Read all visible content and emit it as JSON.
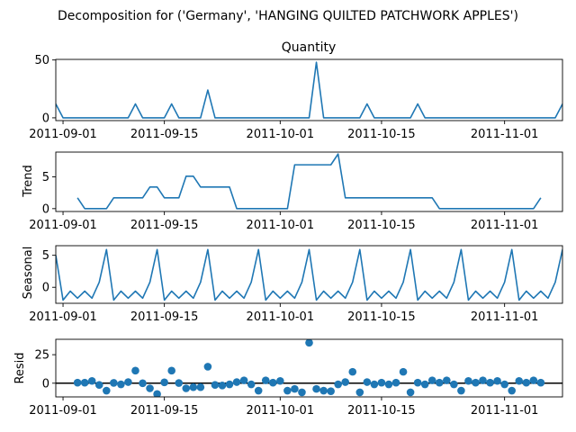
{
  "figure": {
    "suptitle": "Decomposition for ('Germany', 'HANGING QUILTED PATCHWORK APPLES')"
  },
  "colors": {
    "series": "#1f77b4",
    "zero_line": "#000000",
    "axes": "#000000"
  },
  "chart_data": [
    {
      "type": "line",
      "title": "Quantity",
      "ylabel": "",
      "xlim": [
        "2011-08-31",
        "2011-11-09"
      ],
      "ylim": [
        -2.4,
        50.5
      ],
      "yticks": [
        0,
        50
      ],
      "xticks": [
        "2011-09-01",
        "2011-09-15",
        "2011-10-01",
        "2011-10-15",
        "2011-11-01"
      ],
      "series": [
        {
          "x": [
            "2011-08-31",
            "2011-09-01",
            "2011-09-02",
            "2011-09-03",
            "2011-09-04",
            "2011-09-05",
            "2011-09-06",
            "2011-09-07",
            "2011-09-08",
            "2011-09-09",
            "2011-09-10",
            "2011-09-11",
            "2011-09-12",
            "2011-09-13",
            "2011-09-14",
            "2011-09-15",
            "2011-09-16",
            "2011-09-17",
            "2011-09-18",
            "2011-09-19",
            "2011-09-20",
            "2011-09-21",
            "2011-09-22",
            "2011-09-23",
            "2011-09-24",
            "2011-09-25",
            "2011-09-26",
            "2011-09-27",
            "2011-09-28",
            "2011-09-29",
            "2011-09-30",
            "2011-10-01",
            "2011-10-02",
            "2011-10-03",
            "2011-10-04",
            "2011-10-05",
            "2011-10-06",
            "2011-10-07",
            "2011-10-08",
            "2011-10-09",
            "2011-10-10",
            "2011-10-11",
            "2011-10-12",
            "2011-10-13",
            "2011-10-14",
            "2011-10-15",
            "2011-10-16",
            "2011-10-17",
            "2011-10-18",
            "2011-10-19",
            "2011-10-20",
            "2011-10-21",
            "2011-10-22",
            "2011-10-23",
            "2011-10-24",
            "2011-10-25",
            "2011-10-26",
            "2011-10-27",
            "2011-10-28",
            "2011-10-29",
            "2011-10-30",
            "2011-10-31",
            "2011-11-01",
            "2011-11-02",
            "2011-11-03",
            "2011-11-04",
            "2011-11-05",
            "2011-11-06",
            "2011-11-07",
            "2011-11-08",
            "2011-11-09"
          ],
          "y": [
            12,
            0,
            0,
            0,
            0,
            0,
            0,
            0,
            0,
            0,
            0,
            12,
            0,
            0,
            0,
            0,
            12,
            0,
            0,
            0,
            0,
            24,
            0,
            0,
            0,
            0,
            0,
            0,
            0,
            0,
            0,
            0,
            0,
            0,
            0,
            0,
            48,
            0,
            0,
            0,
            0,
            0,
            0,
            12,
            0,
            0,
            0,
            0,
            0,
            0,
            12,
            0,
            0,
            0,
            0,
            0,
            0,
            0,
            0,
            0,
            0,
            0,
            0,
            0,
            0,
            0,
            0,
            0,
            0,
            0,
            12
          ]
        }
      ]
    },
    {
      "type": "line",
      "title": "",
      "ylabel": "Trend",
      "xlim": [
        "2011-08-31",
        "2011-11-09"
      ],
      "ylim": [
        -0.45,
        8.9
      ],
      "yticks": [
        0,
        5
      ],
      "xticks": [
        "2011-09-01",
        "2011-09-15",
        "2011-10-01",
        "2011-10-15",
        "2011-11-01"
      ],
      "series": [
        {
          "x": [
            "2011-09-03",
            "2011-09-04",
            "2011-09-05",
            "2011-09-06",
            "2011-09-07",
            "2011-09-08",
            "2011-09-09",
            "2011-09-10",
            "2011-09-11",
            "2011-09-12",
            "2011-09-13",
            "2011-09-14",
            "2011-09-15",
            "2011-09-16",
            "2011-09-17",
            "2011-09-18",
            "2011-09-19",
            "2011-09-20",
            "2011-09-21",
            "2011-09-22",
            "2011-09-23",
            "2011-09-24",
            "2011-09-25",
            "2011-09-26",
            "2011-09-27",
            "2011-09-28",
            "2011-09-29",
            "2011-09-30",
            "2011-10-01",
            "2011-10-02",
            "2011-10-03",
            "2011-10-04",
            "2011-10-05",
            "2011-10-06",
            "2011-10-07",
            "2011-10-08",
            "2011-10-09",
            "2011-10-10",
            "2011-10-11",
            "2011-10-12",
            "2011-10-13",
            "2011-10-14",
            "2011-10-15",
            "2011-10-16",
            "2011-10-17",
            "2011-10-18",
            "2011-10-19",
            "2011-10-20",
            "2011-10-21",
            "2011-10-22",
            "2011-10-23",
            "2011-10-24",
            "2011-10-25",
            "2011-10-26",
            "2011-10-27",
            "2011-10-28",
            "2011-10-29",
            "2011-10-30",
            "2011-10-31",
            "2011-11-01",
            "2011-11-02",
            "2011-11-03",
            "2011-11-04",
            "2011-11-05",
            "2011-11-06"
          ],
          "y": [
            1.7,
            0,
            0,
            0,
            0,
            1.7,
            1.7,
            1.7,
            1.7,
            1.7,
            3.4,
            3.4,
            1.7,
            1.7,
            1.7,
            5.1,
            5.1,
            3.4,
            3.4,
            3.4,
            3.4,
            3.4,
            0,
            0,
            0,
            0,
            0,
            0,
            0,
            0,
            6.9,
            6.9,
            6.9,
            6.9,
            6.9,
            6.9,
            8.6,
            1.7,
            1.7,
            1.7,
            1.7,
            1.7,
            1.7,
            1.7,
            1.7,
            1.7,
            1.7,
            1.7,
            1.7,
            1.7,
            0,
            0,
            0,
            0,
            0,
            0,
            0,
            0,
            0,
            0,
            0,
            0,
            0,
            0,
            1.7
          ]
        }
      ]
    },
    {
      "type": "line",
      "title": "",
      "ylabel": "Seasonal",
      "xlim": [
        "2011-08-31",
        "2011-11-09"
      ],
      "ylim": [
        -2.5,
        6.5
      ],
      "yticks": [
        0,
        5
      ],
      "xticks": [
        "2011-09-01",
        "2011-09-15",
        "2011-10-01",
        "2011-10-15",
        "2011-11-01"
      ],
      "series": [
        {
          "x": [
            "2011-08-31",
            "2011-09-01",
            "2011-09-02",
            "2011-09-03",
            "2011-09-04",
            "2011-09-05",
            "2011-09-06",
            "2011-09-07",
            "2011-09-08",
            "2011-09-09",
            "2011-09-10",
            "2011-09-11",
            "2011-09-12",
            "2011-09-13",
            "2011-09-14",
            "2011-09-15",
            "2011-09-16",
            "2011-09-17",
            "2011-09-18",
            "2011-09-19",
            "2011-09-20",
            "2011-09-21",
            "2011-09-22",
            "2011-09-23",
            "2011-09-24",
            "2011-09-25",
            "2011-09-26",
            "2011-09-27",
            "2011-09-28",
            "2011-09-29",
            "2011-09-30",
            "2011-10-01",
            "2011-10-02",
            "2011-10-03",
            "2011-10-04",
            "2011-10-05",
            "2011-10-06",
            "2011-10-07",
            "2011-10-08",
            "2011-10-09",
            "2011-10-10",
            "2011-10-11",
            "2011-10-12",
            "2011-10-13",
            "2011-10-14",
            "2011-10-15",
            "2011-10-16",
            "2011-10-17",
            "2011-10-18",
            "2011-10-19",
            "2011-10-20",
            "2011-10-21",
            "2011-10-22",
            "2011-10-23",
            "2011-10-24",
            "2011-10-25",
            "2011-10-26",
            "2011-10-27",
            "2011-10-28",
            "2011-10-29",
            "2011-10-30",
            "2011-10-31",
            "2011-11-01",
            "2011-11-02",
            "2011-11-03",
            "2011-11-04",
            "2011-11-05",
            "2011-11-06",
            "2011-11-07",
            "2011-11-08",
            "2011-11-09"
          ],
          "y": [
            5.0,
            -2.0,
            -0.6,
            -1.7,
            -0.6,
            -1.7,
            0.8,
            5.9,
            -2.0,
            -0.6,
            -1.7,
            -0.6,
            -1.7,
            0.8,
            5.9,
            -2.0,
            -0.6,
            -1.7,
            -0.6,
            -1.7,
            0.8,
            5.9,
            -2.0,
            -0.6,
            -1.7,
            -0.6,
            -1.7,
            0.8,
            5.9,
            -2.0,
            -0.6,
            -1.7,
            -0.6,
            -1.7,
            0.8,
            5.9,
            -2.0,
            -0.6,
            -1.7,
            -0.6,
            -1.7,
            0.8,
            5.9,
            -2.0,
            -0.6,
            -1.7,
            -0.6,
            -1.7,
            0.8,
            5.9,
            -2.0,
            -0.6,
            -1.7,
            -0.6,
            -1.7,
            0.8,
            5.9,
            -2.0,
            -0.6,
            -1.7,
            -0.6,
            -1.7,
            0.8,
            5.9,
            -2.0,
            -0.6,
            -1.7,
            -0.6,
            -1.7,
            0.8,
            5.9
          ]
        }
      ]
    },
    {
      "type": "scatter",
      "title": "",
      "ylabel": "Resid",
      "xlim": [
        "2011-08-31",
        "2011-11-09"
      ],
      "ylim": [
        -12,
        38.5
      ],
      "yticks": [
        0,
        25
      ],
      "xticks": [
        "2011-09-01",
        "2011-09-15",
        "2011-10-01",
        "2011-10-15",
        "2011-11-01"
      ],
      "zero_line": true,
      "series": [
        {
          "x": [
            "2011-09-03",
            "2011-09-04",
            "2011-09-05",
            "2011-09-06",
            "2011-09-07",
            "2011-09-08",
            "2011-09-09",
            "2011-09-10",
            "2011-09-11",
            "2011-09-12",
            "2011-09-13",
            "2011-09-14",
            "2011-09-15",
            "2011-09-16",
            "2011-09-17",
            "2011-09-18",
            "2011-09-19",
            "2011-09-20",
            "2011-09-21",
            "2011-09-22",
            "2011-09-23",
            "2011-09-24",
            "2011-09-25",
            "2011-09-26",
            "2011-09-27",
            "2011-09-28",
            "2011-09-29",
            "2011-09-30",
            "2011-10-01",
            "2011-10-02",
            "2011-10-03",
            "2011-10-04",
            "2011-10-05",
            "2011-10-06",
            "2011-10-07",
            "2011-10-08",
            "2011-10-09",
            "2011-10-10",
            "2011-10-11",
            "2011-10-12",
            "2011-10-13",
            "2011-10-14",
            "2011-10-15",
            "2011-10-16",
            "2011-10-17",
            "2011-10-18",
            "2011-10-19",
            "2011-10-20",
            "2011-10-21",
            "2011-10-22",
            "2011-10-23",
            "2011-10-24",
            "2011-10-25",
            "2011-10-26",
            "2011-10-27",
            "2011-10-28",
            "2011-10-29",
            "2011-10-30",
            "2011-10-31",
            "2011-11-01",
            "2011-11-02",
            "2011-11-03",
            "2011-11-04",
            "2011-11-05",
            "2011-11-06"
          ],
          "y": [
            0.5,
            0.5,
            2.0,
            -1.5,
            -6.5,
            0.3,
            -1.0,
            1.0,
            11.0,
            0.0,
            -4.5,
            -9.5,
            0.8,
            11.0,
            0.2,
            -4.5,
            -3.5,
            -3.5,
            14.5,
            -1.5,
            -2.0,
            -1.0,
            1.0,
            2.5,
            -1.0,
            -6.5,
            2.5,
            0.5,
            2.0,
            -6.5,
            -5.0,
            -8.0,
            35.5,
            -5.0,
            -6.5,
            -7.0,
            -1.0,
            1.0,
            10.0,
            -8.0,
            1.0,
            -1.0,
            0.5,
            -1.0,
            0.5,
            10.0,
            -8.0,
            0.5,
            -1.0,
            2.5,
            0.5,
            2.5,
            -1.0,
            -6.5,
            2.0,
            0.5,
            2.5,
            0.5,
            2.0,
            -1.0,
            -6.5,
            2.0,
            0.5,
            2.5,
            0.5
          ]
        }
      ]
    }
  ]
}
